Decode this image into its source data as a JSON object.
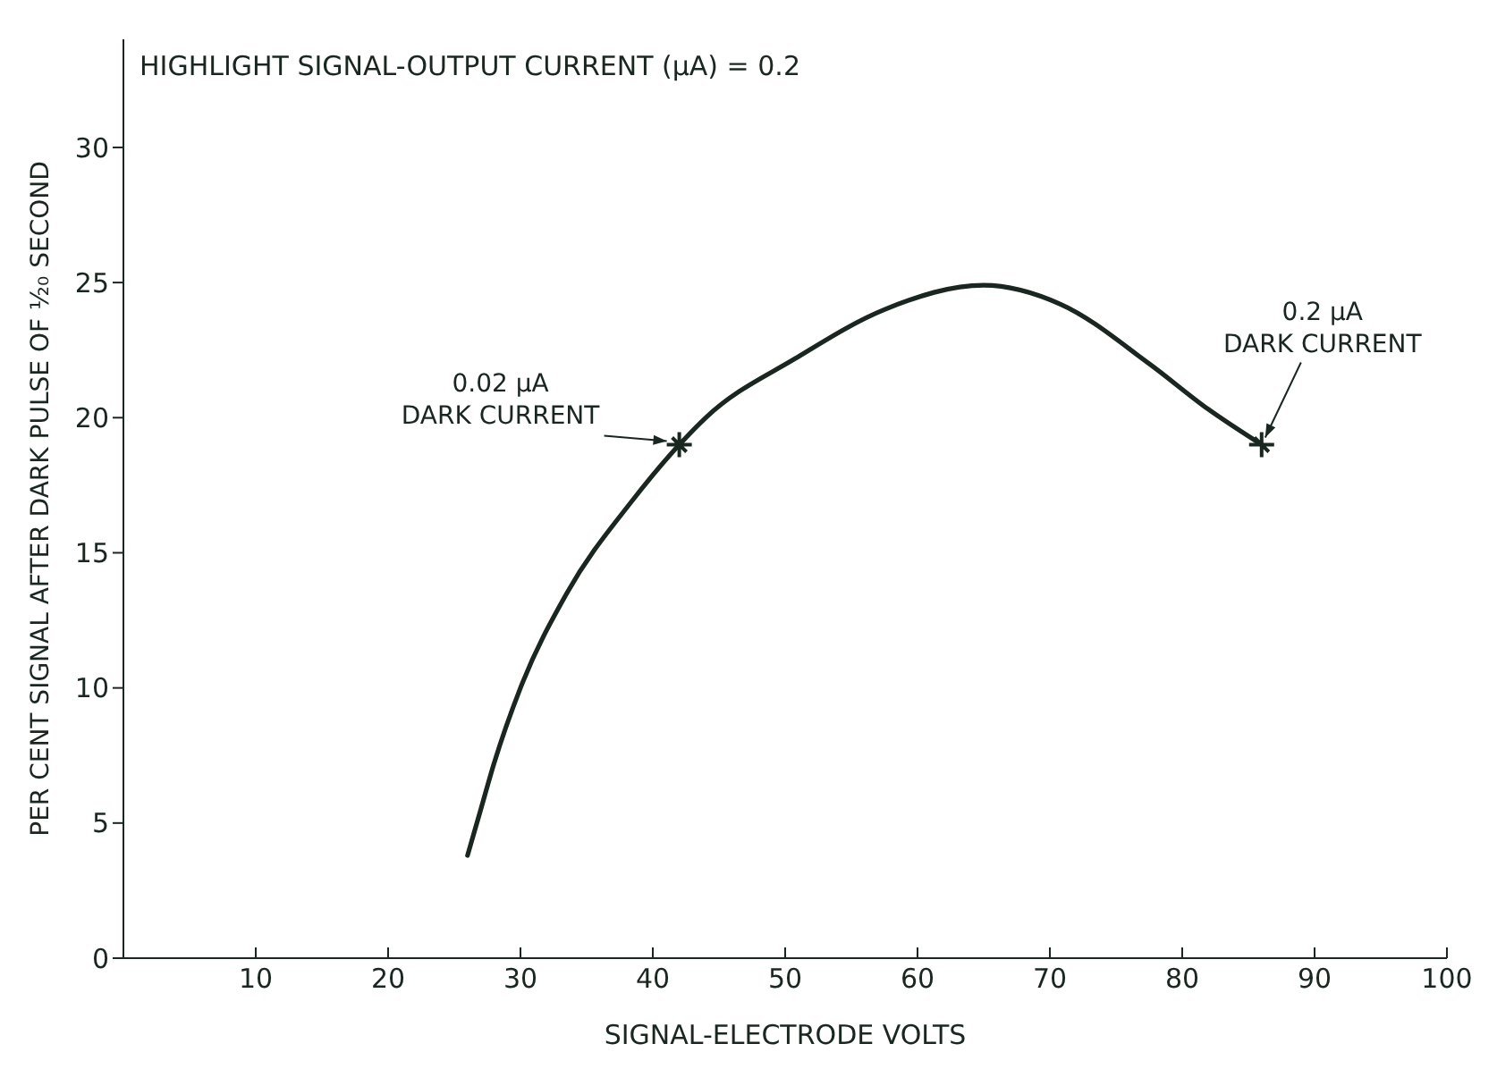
{
  "chart_data": {
    "type": "line",
    "title": "HIGHLIGHT SIGNAL-OUTPUT CURRENT (μA) = 0.2",
    "xlabel": "SIGNAL-ELECTRODE VOLTS",
    "ylabel": "PER CENT SIGNAL AFTER DARK PULSE OF ¹⁄₂₀ SECOND",
    "series": [
      {
        "color": "#1a2620",
        "marker": "none",
        "x": [
          26,
          27,
          28,
          30,
          33.5,
          38.4,
          42,
          44,
          50.8,
          57.5,
          65,
          70.8,
          77.5,
          82,
          86
        ],
        "values": [
          3.8,
          5.5,
          7.2,
          10,
          13.5,
          16.9,
          19,
          20,
          22.2,
          24,
          24.9,
          24.2,
          22,
          20.3,
          19
        ]
      },
      {
        "type": "scatter",
        "color": "#1a2620",
        "marker": "cross",
        "x": [
          42,
          86
        ],
        "values": [
          19,
          19
        ]
      }
    ],
    "annotations": [
      {
        "text": "0.02 μA\nDARK CURRENT",
        "x": 42,
        "y": 19
      },
      {
        "text": "0.2 μA\nDARK CURRENT",
        "x": 86,
        "y": 19
      }
    ],
    "xlim": [
      0,
      100
    ],
    "xticks": [
      {
        "value": 0,
        "label": null
      },
      10,
      20,
      30,
      40,
      50,
      60,
      70,
      80,
      90,
      100
    ],
    "ylim": [
      0,
      34
    ],
    "yticks": [
      0,
      5,
      10,
      15,
      20,
      25,
      30
    ],
    "grid": false
  }
}
